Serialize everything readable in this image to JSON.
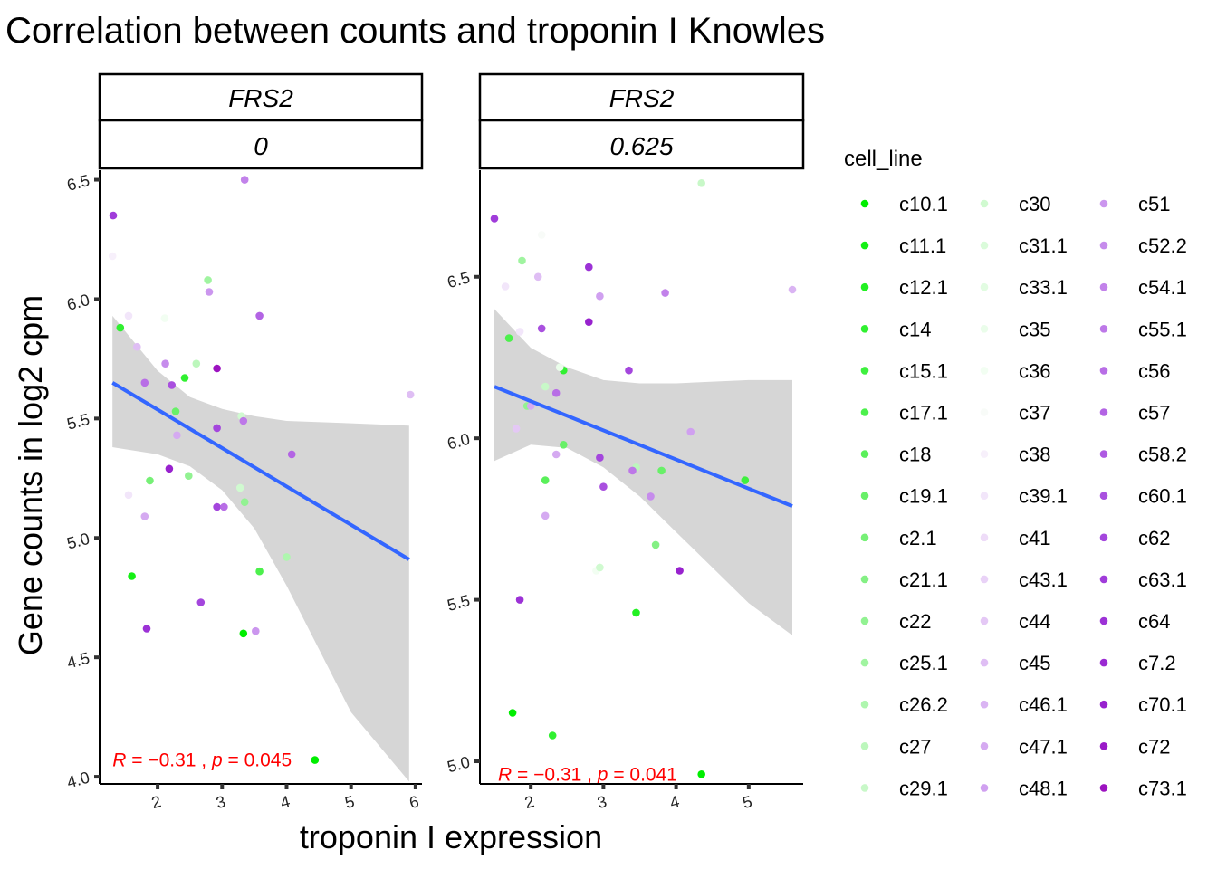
{
  "title": "Correlation between counts and troponin I Knowles",
  "colors": {
    "regression_line": "#3366ff",
    "ci_band": "#d6d6d6",
    "annotation": "#ff0000",
    "strip_border": "#000000"
  },
  "chart_data": {
    "type": "scatter",
    "title": "Correlation between counts and troponin I Knowles",
    "xlabel": "troponin I expression",
    "ylabel": "Gene counts in log2 cpm",
    "legend": {
      "title": "cell_line",
      "position": "right",
      "entries": [
        {
          "name": "c10.1",
          "color": "#00ee00"
        },
        {
          "name": "c11.1",
          "color": "#14f014"
        },
        {
          "name": "c12.1",
          "color": "#22f022"
        },
        {
          "name": "c14",
          "color": "#30f030"
        },
        {
          "name": "c15.1",
          "color": "#3ef03e"
        },
        {
          "name": "c17.1",
          "color": "#4cf04c"
        },
        {
          "name": "c18",
          "color": "#5af05a"
        },
        {
          "name": "c19.1",
          "color": "#68f068"
        },
        {
          "name": "c2.1",
          "color": "#76f076"
        },
        {
          "name": "c21.1",
          "color": "#84f084"
        },
        {
          "name": "c22",
          "color": "#92f292"
        },
        {
          "name": "c25.1",
          "color": "#a0f4a0"
        },
        {
          "name": "c26.2",
          "color": "#aef6ae"
        },
        {
          "name": "c27",
          "color": "#bcf7bc"
        },
        {
          "name": "c29.1",
          "color": "#c8f8c8"
        },
        {
          "name": "c30",
          "color": "#d0fad0"
        },
        {
          "name": "c31.1",
          "color": "#dafbda"
        },
        {
          "name": "c33.1",
          "color": "#e2fce2"
        },
        {
          "name": "c35",
          "color": "#eafdea"
        },
        {
          "name": "c36",
          "color": "#f2fef2"
        },
        {
          "name": "c37",
          "color": "#f8fbf8"
        },
        {
          "name": "c38",
          "color": "#f7f0fb"
        },
        {
          "name": "c39.1",
          "color": "#f2e6fa"
        },
        {
          "name": "c41",
          "color": "#eedcf8"
        },
        {
          "name": "c43.1",
          "color": "#e9d2f7"
        },
        {
          "name": "c44",
          "color": "#e4c8f5"
        },
        {
          "name": "c45",
          "color": "#dfbef4"
        },
        {
          "name": "c46.1",
          "color": "#dab4f3"
        },
        {
          "name": "c47.1",
          "color": "#d5aaf1"
        },
        {
          "name": "c48.1",
          "color": "#d0a0f0"
        },
        {
          "name": "c51",
          "color": "#cb96ee"
        },
        {
          "name": "c52.2",
          "color": "#c68cec"
        },
        {
          "name": "c54.1",
          "color": "#c282ea"
        },
        {
          "name": "c55.1",
          "color": "#bd78e8"
        },
        {
          "name": "c56",
          "color": "#b86ee6"
        },
        {
          "name": "c57",
          "color": "#b364e4"
        },
        {
          "name": "c58.2",
          "color": "#ae5ae2"
        },
        {
          "name": "c60.1",
          "color": "#a950df"
        },
        {
          "name": "c62",
          "color": "#a446dd"
        },
        {
          "name": "c63.1",
          "color": "#a03cda"
        },
        {
          "name": "c64",
          "color": "#9c32d6"
        },
        {
          "name": "c7.2",
          "color": "#9a2ad2"
        },
        {
          "name": "c70.1",
          "color": "#9822ce"
        },
        {
          "name": "c72",
          "color": "#9a1ac8"
        },
        {
          "name": "c73.1",
          "color": "#9c12c0"
        }
      ]
    },
    "panels": [
      {
        "strip_top": "FRS2",
        "strip_bottom": "0",
        "xlim": [
          1.1,
          6.1
        ],
        "ylim": [
          3.97,
          6.54
        ],
        "xticks": [
          2,
          3,
          4,
          5,
          6
        ],
        "yticks": [
          4.0,
          4.5,
          5.0,
          5.5,
          6.0,
          6.5
        ],
        "yticklabels": [
          "4.0",
          "4.5",
          "5.0",
          "5.5",
          "6.0",
          "6.5"
        ],
        "regression": {
          "x": [
            1.3,
            5.9
          ],
          "y": [
            5.65,
            4.91
          ]
        },
        "ci_band": [
          {
            "x": 1.3,
            "lo": 5.38,
            "hi": 5.93
          },
          {
            "x": 2.0,
            "lo": 5.35,
            "hi": 5.7
          },
          {
            "x": 2.5,
            "lo": 5.3,
            "hi": 5.59
          },
          {
            "x": 3.0,
            "lo": 5.2,
            "hi": 5.54
          },
          {
            "x": 3.5,
            "lo": 5.04,
            "hi": 5.51
          },
          {
            "x": 4.0,
            "lo": 4.8,
            "hi": 5.49
          },
          {
            "x": 5.0,
            "lo": 4.27,
            "hi": 5.48
          },
          {
            "x": 5.9,
            "lo": 3.98,
            "hi": 5.47
          }
        ],
        "annotation": {
          "x": 1.3,
          "y": 4.07,
          "r_label": "R",
          "r_value": " = −0.31 , ",
          "p_label": "p",
          "p_value": " = 0.045"
        },
        "points": [
          {
            "x": 1.31,
            "y": 6.35,
            "color": "#a03cda"
          },
          {
            "x": 1.3,
            "y": 6.18,
            "color": "#f7f0fb"
          },
          {
            "x": 1.42,
            "y": 5.88,
            "color": "#30f030"
          },
          {
            "x": 1.55,
            "y": 5.93,
            "color": "#f2e6fa"
          },
          {
            "x": 1.68,
            "y": 5.8,
            "color": "#dfbef4"
          },
          {
            "x": 1.8,
            "y": 5.65,
            "color": "#b86ee6"
          },
          {
            "x": 2.11,
            "y": 5.92,
            "color": "#f2fef2"
          },
          {
            "x": 2.12,
            "y": 5.73,
            "color": "#c68cec"
          },
          {
            "x": 2.22,
            "y": 5.64,
            "color": "#a950df"
          },
          {
            "x": 2.28,
            "y": 5.53,
            "color": "#68f068"
          },
          {
            "x": 2.42,
            "y": 5.67,
            "color": "#30f030"
          },
          {
            "x": 2.6,
            "y": 5.73,
            "color": "#bcf7bc"
          },
          {
            "x": 2.78,
            "y": 6.08,
            "color": "#a0f4a0"
          },
          {
            "x": 2.8,
            "y": 6.03,
            "color": "#cb96ee"
          },
          {
            "x": 2.92,
            "y": 5.71,
            "color": "#9c12c0"
          },
          {
            "x": 2.92,
            "y": 5.46,
            "color": "#a446dd"
          },
          {
            "x": 3.3,
            "y": 5.51,
            "color": "#d0fad0"
          },
          {
            "x": 3.33,
            "y": 5.49,
            "color": "#bd78e8"
          },
          {
            "x": 3.35,
            "y": 6.5,
            "color": "#c282ea"
          },
          {
            "x": 3.58,
            "y": 5.93,
            "color": "#b364e4"
          },
          {
            "x": 2.3,
            "y": 5.43,
            "color": "#d5aaf1"
          },
          {
            "x": 2.48,
            "y": 5.26,
            "color": "#92f292"
          },
          {
            "x": 2.18,
            "y": 5.29,
            "color": "#9822ce"
          },
          {
            "x": 1.88,
            "y": 5.24,
            "color": "#76f076"
          },
          {
            "x": 1.55,
            "y": 5.18,
            "color": "#f2e6fa"
          },
          {
            "x": 1.8,
            "y": 5.09,
            "color": "#d5aaf1"
          },
          {
            "x": 2.92,
            "y": 5.13,
            "color": "#a446dd"
          },
          {
            "x": 3.03,
            "y": 5.13,
            "color": "#b86ee6"
          },
          {
            "x": 3.28,
            "y": 5.21,
            "color": "#d0fad0"
          },
          {
            "x": 3.35,
            "y": 5.15,
            "color": "#92f292"
          },
          {
            "x": 4.08,
            "y": 5.35,
            "color": "#b364e4"
          },
          {
            "x": 1.6,
            "y": 4.84,
            "color": "#14f014"
          },
          {
            "x": 3.58,
            "y": 4.86,
            "color": "#4cf04c"
          },
          {
            "x": 4.0,
            "y": 4.92,
            "color": "#aef6ae"
          },
          {
            "x": 2.67,
            "y": 4.73,
            "color": "#a446dd"
          },
          {
            "x": 1.83,
            "y": 4.62,
            "color": "#9c32d6"
          },
          {
            "x": 3.33,
            "y": 4.6,
            "color": "#00ee00"
          },
          {
            "x": 3.52,
            "y": 4.61,
            "color": "#cb96ee"
          },
          {
            "x": 4.44,
            "y": 4.07,
            "color": "#00ee00"
          },
          {
            "x": 5.92,
            "y": 5.6,
            "color": "#dfbef4"
          }
        ]
      },
      {
        "strip_top": "FRS2",
        "strip_bottom": "0.625",
        "xlim": [
          1.3,
          5.75
        ],
        "ylim": [
          4.93,
          6.83
        ],
        "xticks": [
          2,
          3,
          4,
          5
        ],
        "yticks": [
          5.0,
          5.5,
          6.0,
          6.5
        ],
        "yticklabels": [
          "5.0",
          "5.5",
          "6.0",
          "6.5"
        ],
        "regression": {
          "x": [
            1.5,
            5.6
          ],
          "y": [
            6.16,
            5.79
          ]
        },
        "ci_band": [
          {
            "x": 1.5,
            "lo": 5.93,
            "hi": 6.4
          },
          {
            "x": 2.0,
            "lo": 5.98,
            "hi": 6.28
          },
          {
            "x": 2.5,
            "lo": 5.97,
            "hi": 6.22
          },
          {
            "x": 3.0,
            "lo": 5.91,
            "hi": 6.18
          },
          {
            "x": 3.5,
            "lo": 5.82,
            "hi": 6.17
          },
          {
            "x": 4.0,
            "lo": 5.71,
            "hi": 6.17
          },
          {
            "x": 5.0,
            "lo": 5.49,
            "hi": 6.18
          },
          {
            "x": 5.6,
            "lo": 5.39,
            "hi": 6.18
          }
        ],
        "annotation": {
          "x": 1.55,
          "y": 4.96,
          "r_label": "R",
          "r_value": " = −0.31 , ",
          "p_label": "p",
          "p_value": " = 0.041"
        },
        "points": [
          {
            "x": 1.5,
            "y": 6.68,
            "color": "#a03cda"
          },
          {
            "x": 1.65,
            "y": 6.47,
            "color": "#f2e6fa"
          },
          {
            "x": 1.88,
            "y": 6.55,
            "color": "#a0f4a0"
          },
          {
            "x": 2.15,
            "y": 6.63,
            "color": "#f8fbf8"
          },
          {
            "x": 2.1,
            "y": 6.5,
            "color": "#dfbef4"
          },
          {
            "x": 2.8,
            "y": 6.53,
            "color": "#9c32d6"
          },
          {
            "x": 2.95,
            "y": 6.44,
            "color": "#d0a0f0"
          },
          {
            "x": 3.85,
            "y": 6.45,
            "color": "#c282ea"
          },
          {
            "x": 4.35,
            "y": 6.79,
            "color": "#c8f8c8"
          },
          {
            "x": 5.6,
            "y": 6.46,
            "color": "#dab4f3"
          },
          {
            "x": 1.7,
            "y": 6.31,
            "color": "#4cf04c"
          },
          {
            "x": 1.85,
            "y": 6.33,
            "color": "#f2e6fa"
          },
          {
            "x": 2.15,
            "y": 6.34,
            "color": "#a950df"
          },
          {
            "x": 2.8,
            "y": 6.36,
            "color": "#9822ce"
          },
          {
            "x": 2.45,
            "y": 6.21,
            "color": "#30f030"
          },
          {
            "x": 2.4,
            "y": 6.22,
            "color": "#eafdea"
          },
          {
            "x": 2.2,
            "y": 6.16,
            "color": "#c8f8c8"
          },
          {
            "x": 2.35,
            "y": 6.14,
            "color": "#b86ee6"
          },
          {
            "x": 3.35,
            "y": 6.21,
            "color": "#a446dd"
          },
          {
            "x": 1.95,
            "y": 6.1,
            "color": "#92f292"
          },
          {
            "x": 2.0,
            "y": 6.1,
            "color": "#d5aaf1"
          },
          {
            "x": 1.8,
            "y": 6.03,
            "color": "#e4c8f5"
          },
          {
            "x": 2.45,
            "y": 5.98,
            "color": "#68f068"
          },
          {
            "x": 2.35,
            "y": 5.95,
            "color": "#d5aaf1"
          },
          {
            "x": 2.95,
            "y": 5.94,
            "color": "#a446dd"
          },
          {
            "x": 3.45,
            "y": 5.91,
            "color": "#bcf7bc"
          },
          {
            "x": 3.4,
            "y": 5.9,
            "color": "#bd78e8"
          },
          {
            "x": 3.8,
            "y": 5.9,
            "color": "#68f068"
          },
          {
            "x": 4.2,
            "y": 6.02,
            "color": "#d0a0f0"
          },
          {
            "x": 4.95,
            "y": 5.87,
            "color": "#3ef03e"
          },
          {
            "x": 2.2,
            "y": 5.87,
            "color": "#5af05a"
          },
          {
            "x": 3.0,
            "y": 5.85,
            "color": "#a950df"
          },
          {
            "x": 3.65,
            "y": 5.82,
            "color": "#c68cec"
          },
          {
            "x": 2.2,
            "y": 5.76,
            "color": "#d5aaf1"
          },
          {
            "x": 3.72,
            "y": 5.67,
            "color": "#84f084"
          },
          {
            "x": 2.9,
            "y": 5.59,
            "color": "#f2fef2"
          },
          {
            "x": 2.95,
            "y": 5.6,
            "color": "#d0fad0"
          },
          {
            "x": 4.05,
            "y": 5.59,
            "color": "#9822ce"
          },
          {
            "x": 1.85,
            "y": 5.5,
            "color": "#9c32d6"
          },
          {
            "x": 3.45,
            "y": 5.46,
            "color": "#22f022"
          },
          {
            "x": 1.75,
            "y": 5.15,
            "color": "#00ee00"
          },
          {
            "x": 2.3,
            "y": 5.08,
            "color": "#30f030"
          },
          {
            "x": 4.35,
            "y": 4.96,
            "color": "#00ee00"
          }
        ]
      }
    ]
  }
}
